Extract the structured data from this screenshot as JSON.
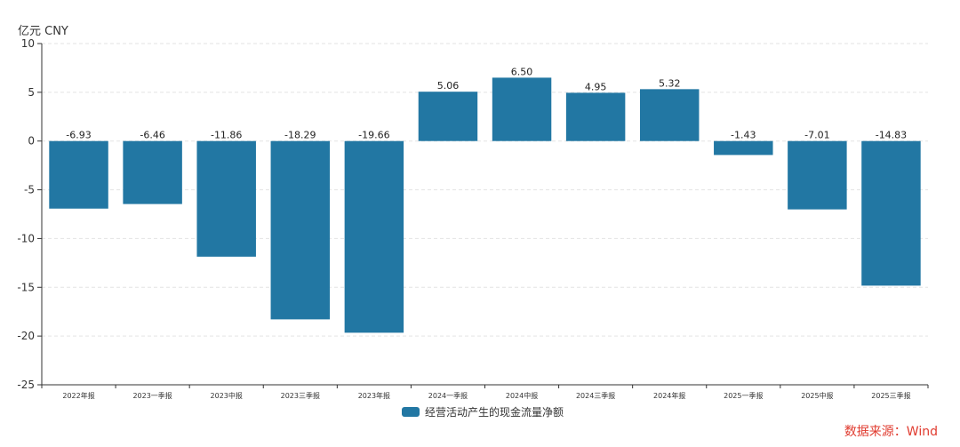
{
  "unit_label": "亿元  CNY",
  "source": "数据来源：Wind",
  "colors": {
    "bar": "#2277a3",
    "axis": "#333333",
    "grid": "#e3e3e3",
    "source": "#e03b2f"
  },
  "chart_data": {
    "type": "bar",
    "categories": [
      "2022年报",
      "2023一季报",
      "2023中报",
      "2023三季报",
      "2023年报",
      "2024一季报",
      "2024中报",
      "2024三季报",
      "2024年报",
      "2025一季报",
      "2025中报",
      "2025三季报"
    ],
    "series": [
      {
        "name": "经营活动产生的现金流量净额",
        "values": [
          -6.93,
          -6.46,
          -11.86,
          -18.29,
          -19.66,
          5.06,
          6.5,
          4.95,
          5.32,
          -1.43,
          -7.01,
          -14.83
        ],
        "labels": [
          "-6.93",
          "-6.46",
          "-11.86",
          "-18.29",
          "-19.66",
          "5.06",
          "6.50",
          "4.95",
          "5.32",
          "-1.43",
          "-7.01",
          "-14.83"
        ]
      }
    ],
    "ylim": [
      -25,
      10
    ],
    "yticks": [
      10,
      5,
      0,
      -5,
      -10,
      -15,
      -20,
      -25
    ],
    "grid": true,
    "legend_position": "bottom-center"
  }
}
